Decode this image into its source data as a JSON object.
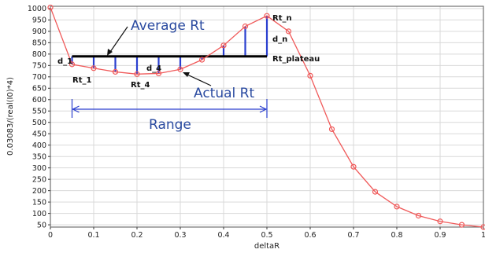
{
  "chart_data": {
    "type": "line",
    "xlabel": "deltaR",
    "ylabel": "0.03083/(real(I0)*4)",
    "xlim": [
      0,
      1
    ],
    "ylim": [
      40,
      1010
    ],
    "grid": true,
    "x_ticks": [
      "0",
      "0.1",
      "0.2",
      "0.3",
      "0.4",
      "0.5",
      "0.6",
      "0.7",
      "0.8",
      "0.9",
      "1"
    ],
    "y_ticks": [
      "50",
      "100",
      "150",
      "200",
      "250",
      "300",
      "350",
      "400",
      "450",
      "500",
      "550",
      "600",
      "650",
      "700",
      "750",
      "800",
      "850",
      "900",
      "950",
      "1000"
    ],
    "series": [
      {
        "color": "#f05a5a",
        "x": [
          0,
          0.05,
          0.1,
          0.15,
          0.2,
          0.25,
          0.3,
          0.35,
          0.4,
          0.45,
          0.5,
          0.55,
          0.6,
          0.65,
          0.7,
          0.75,
          0.8,
          0.85,
          0.9,
          0.95,
          1.0
        ],
        "y": [
          1005,
          755,
          738,
          722,
          712,
          715,
          733,
          775,
          838,
          922,
          968,
          900,
          705,
          470,
          305,
          195,
          130,
          90,
          65,
          50,
          40
        ]
      }
    ],
    "plateau": {
      "value": 790,
      "x_start": 0.05,
      "x_end": 0.5,
      "label": "Rt_plateau"
    },
    "range": {
      "x_start": 0.05,
      "x_end": 0.5,
      "label": "Range"
    },
    "annotations": {
      "average": "Average Rt",
      "actual": "Actual Rt",
      "rt1": "Rt_1",
      "rt4": "Rt_4",
      "rtn": "Rt_n",
      "d1": "d_1",
      "d4": "d_4",
      "dn": "d_n"
    },
    "colors": {
      "curve": "#f05a5a",
      "plateau": "#000000",
      "deviation": "#2a3fcf",
      "annotation": "#2a4aa0"
    }
  }
}
